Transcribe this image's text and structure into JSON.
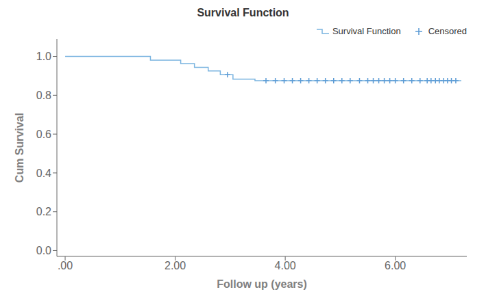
{
  "chart_data": {
    "type": "line",
    "title": "Survival Function",
    "xlabel": "Follow up (years)",
    "ylabel": "Cum Survival",
    "xlim": [
      -0.15,
      7.3
    ],
    "ylim": [
      -0.03,
      1.09
    ],
    "xticks": [
      {
        "value": 0.0,
        "label": ".00"
      },
      {
        "value": 2.0,
        "label": "2.00"
      },
      {
        "value": 4.0,
        "label": "4.00"
      },
      {
        "value": 6.0,
        "label": "6.00"
      }
    ],
    "yticks": [
      {
        "value": 0.0,
        "label": "0.0"
      },
      0.2,
      0.4,
      0.6,
      0.8,
      {
        "value": 1.0,
        "label": "1.0"
      }
    ],
    "grid": false,
    "legend": "upper right",
    "series": [
      {
        "name": "Survival Function",
        "type": "line",
        "line_style": "step",
        "color": "#7ab4e0",
        "x": [
          0.0,
          1.55,
          1.55,
          2.1,
          2.1,
          2.35,
          2.35,
          2.6,
          2.6,
          2.82,
          2.82,
          3.05,
          3.05,
          3.45,
          3.45,
          7.2
        ],
        "values": [
          1.0,
          1.0,
          0.981,
          0.981,
          0.963,
          0.963,
          0.944,
          0.944,
          0.925,
          0.925,
          0.906,
          0.906,
          0.883,
          0.883,
          0.875,
          0.875
        ]
      },
      {
        "name": "Censored",
        "type": "scatter",
        "marker": "+",
        "color": "#5b9bd5",
        "x": [
          2.95,
          3.65,
          3.82,
          3.98,
          4.13,
          4.28,
          4.43,
          4.58,
          4.73,
          4.88,
          5.03,
          5.18,
          5.35,
          5.5,
          5.6,
          5.7,
          5.8,
          5.9,
          6.0,
          6.15,
          6.3,
          6.45,
          6.58,
          6.65,
          6.73,
          6.8,
          6.88,
          6.95,
          7.02,
          7.1
        ],
        "values": [
          0.906,
          0.875,
          0.875,
          0.875,
          0.875,
          0.875,
          0.875,
          0.875,
          0.875,
          0.875,
          0.875,
          0.875,
          0.875,
          0.875,
          0.875,
          0.875,
          0.875,
          0.875,
          0.875,
          0.875,
          0.875,
          0.875,
          0.875,
          0.875,
          0.875,
          0.875,
          0.875,
          0.875,
          0.875,
          0.875
        ]
      }
    ]
  }
}
